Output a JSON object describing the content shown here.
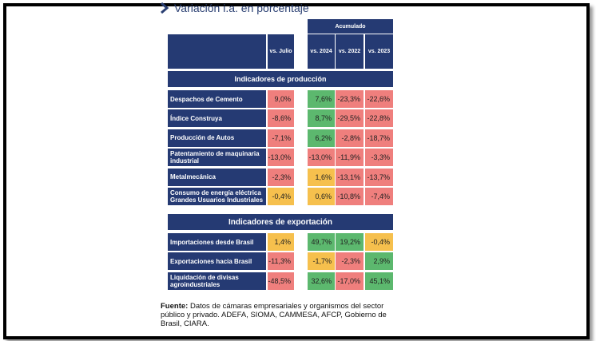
{
  "title": "Variación i.a. en porcentaje",
  "header": {
    "acumulado": "Acumulado",
    "columns": [
      "vs. Julio",
      "vs. 2024",
      "vs. 2022",
      "vs. 2023"
    ]
  },
  "sections": [
    {
      "title": "Indicadores de producción",
      "rows": [
        {
          "label": "Despachos de Cemento",
          "values": [
            "9,0%",
            "7,6%",
            "-23,3%",
            "-22,6%"
          ]
        },
        {
          "label": "Índice Construya",
          "values": [
            "-8,6%",
            "8,7%",
            "-29,5%",
            "-22,8%"
          ]
        },
        {
          "label": "Producción de Autos",
          "values": [
            "-7,1%",
            "6,2%",
            "-2,8%",
            "-18,7%"
          ]
        },
        {
          "label": "Patentamiento de maquinaria industrial",
          "values": [
            "-13,0%",
            "-13,0%",
            "-11,9%",
            "-3,3%"
          ]
        },
        {
          "label": "Metalmecánica",
          "values": [
            "-2,3%",
            "1,6%",
            "-13,1%",
            "-13,7%"
          ]
        },
        {
          "label": "Consumo de energía eléctrica Grandes Usuarios Industriales",
          "values": [
            "-0,4%",
            "0,6%",
            "-10,8%",
            "-7,4%"
          ]
        }
      ]
    },
    {
      "title": "Indicadores de exportación",
      "rows": [
        {
          "label": "Importaciones desde Brasil",
          "values": [
            "1,4%",
            "49,7%",
            "19,2%",
            "-0,4%"
          ]
        },
        {
          "label": "Exportaciones hacia Brasil",
          "values": [
            "-11,3%",
            "-1,7%",
            "-2,3%",
            "2,9%"
          ]
        },
        {
          "label": "Liquidación de divisas agroindustriales",
          "values": [
            "-48,5%",
            "32,6%",
            "-17,0%",
            "45,1%"
          ]
        }
      ]
    }
  ],
  "source": {
    "label": "Fuente:",
    "text": " Datos de cámaras empresariales y organismos del sector público y privado. ADEFA, SIOMA, CAMMESA, AFCP, Gobierno de Brasil, CIARA."
  },
  "colors": {
    "navy": "#253a73",
    "red": "#ef7f7d",
    "green": "#5cb86e",
    "yellow": "#f6c04d"
  },
  "cell_colors": [
    [
      "red",
      "green",
      "red",
      "red"
    ],
    [
      "red",
      "green",
      "red",
      "red"
    ],
    [
      "red",
      "green",
      "red",
      "red"
    ],
    [
      "red",
      "red",
      "red",
      "red"
    ],
    [
      "red",
      "yellow",
      "red",
      "red"
    ],
    [
      "yellow",
      "yellow",
      "red",
      "red"
    ],
    [
      "yellow",
      "green",
      "green",
      "yellow"
    ],
    [
      "red",
      "yellow",
      "red",
      "green"
    ],
    [
      "red",
      "green",
      "red",
      "green"
    ]
  ]
}
